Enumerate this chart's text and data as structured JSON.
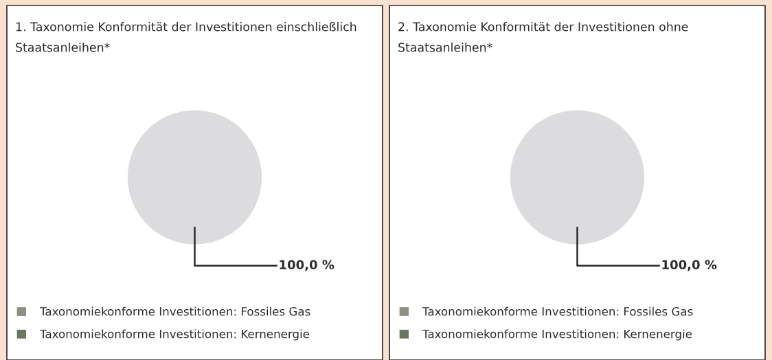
{
  "chart_data": [
    {
      "type": "pie",
      "title": "1. Taxonomie Konformität der Investitionen einschließlich Staatsanleihen*",
      "categories": [
        "Taxonomiekonforme Investitionen: Fossiles Gas",
        "Taxonomiekonforme Investitionen: Kernenergie",
        null
      ],
      "values": [
        0,
        0,
        100
      ],
      "colors": [
        "#8e8f80",
        "#6b7563",
        "#dcdcde"
      ],
      "value_labels": [
        null,
        null,
        "100,0 %"
      ],
      "legend": "bottom"
    },
    {
      "type": "pie",
      "title": "2. Taxonomie Konformität der Investitionen ohne Staatsanleihen*",
      "categories": [
        "Taxonomiekonforme Investitionen: Fossiles Gas",
        "Taxonomiekonforme Investitionen: Kernenergie",
        null
      ],
      "values": [
        0,
        0,
        100
      ],
      "colors": [
        "#8e8f80",
        "#6b7563",
        "#dcdcde"
      ],
      "value_labels": [
        null,
        null,
        "100,0 %"
      ],
      "legend": "bottom"
    }
  ]
}
